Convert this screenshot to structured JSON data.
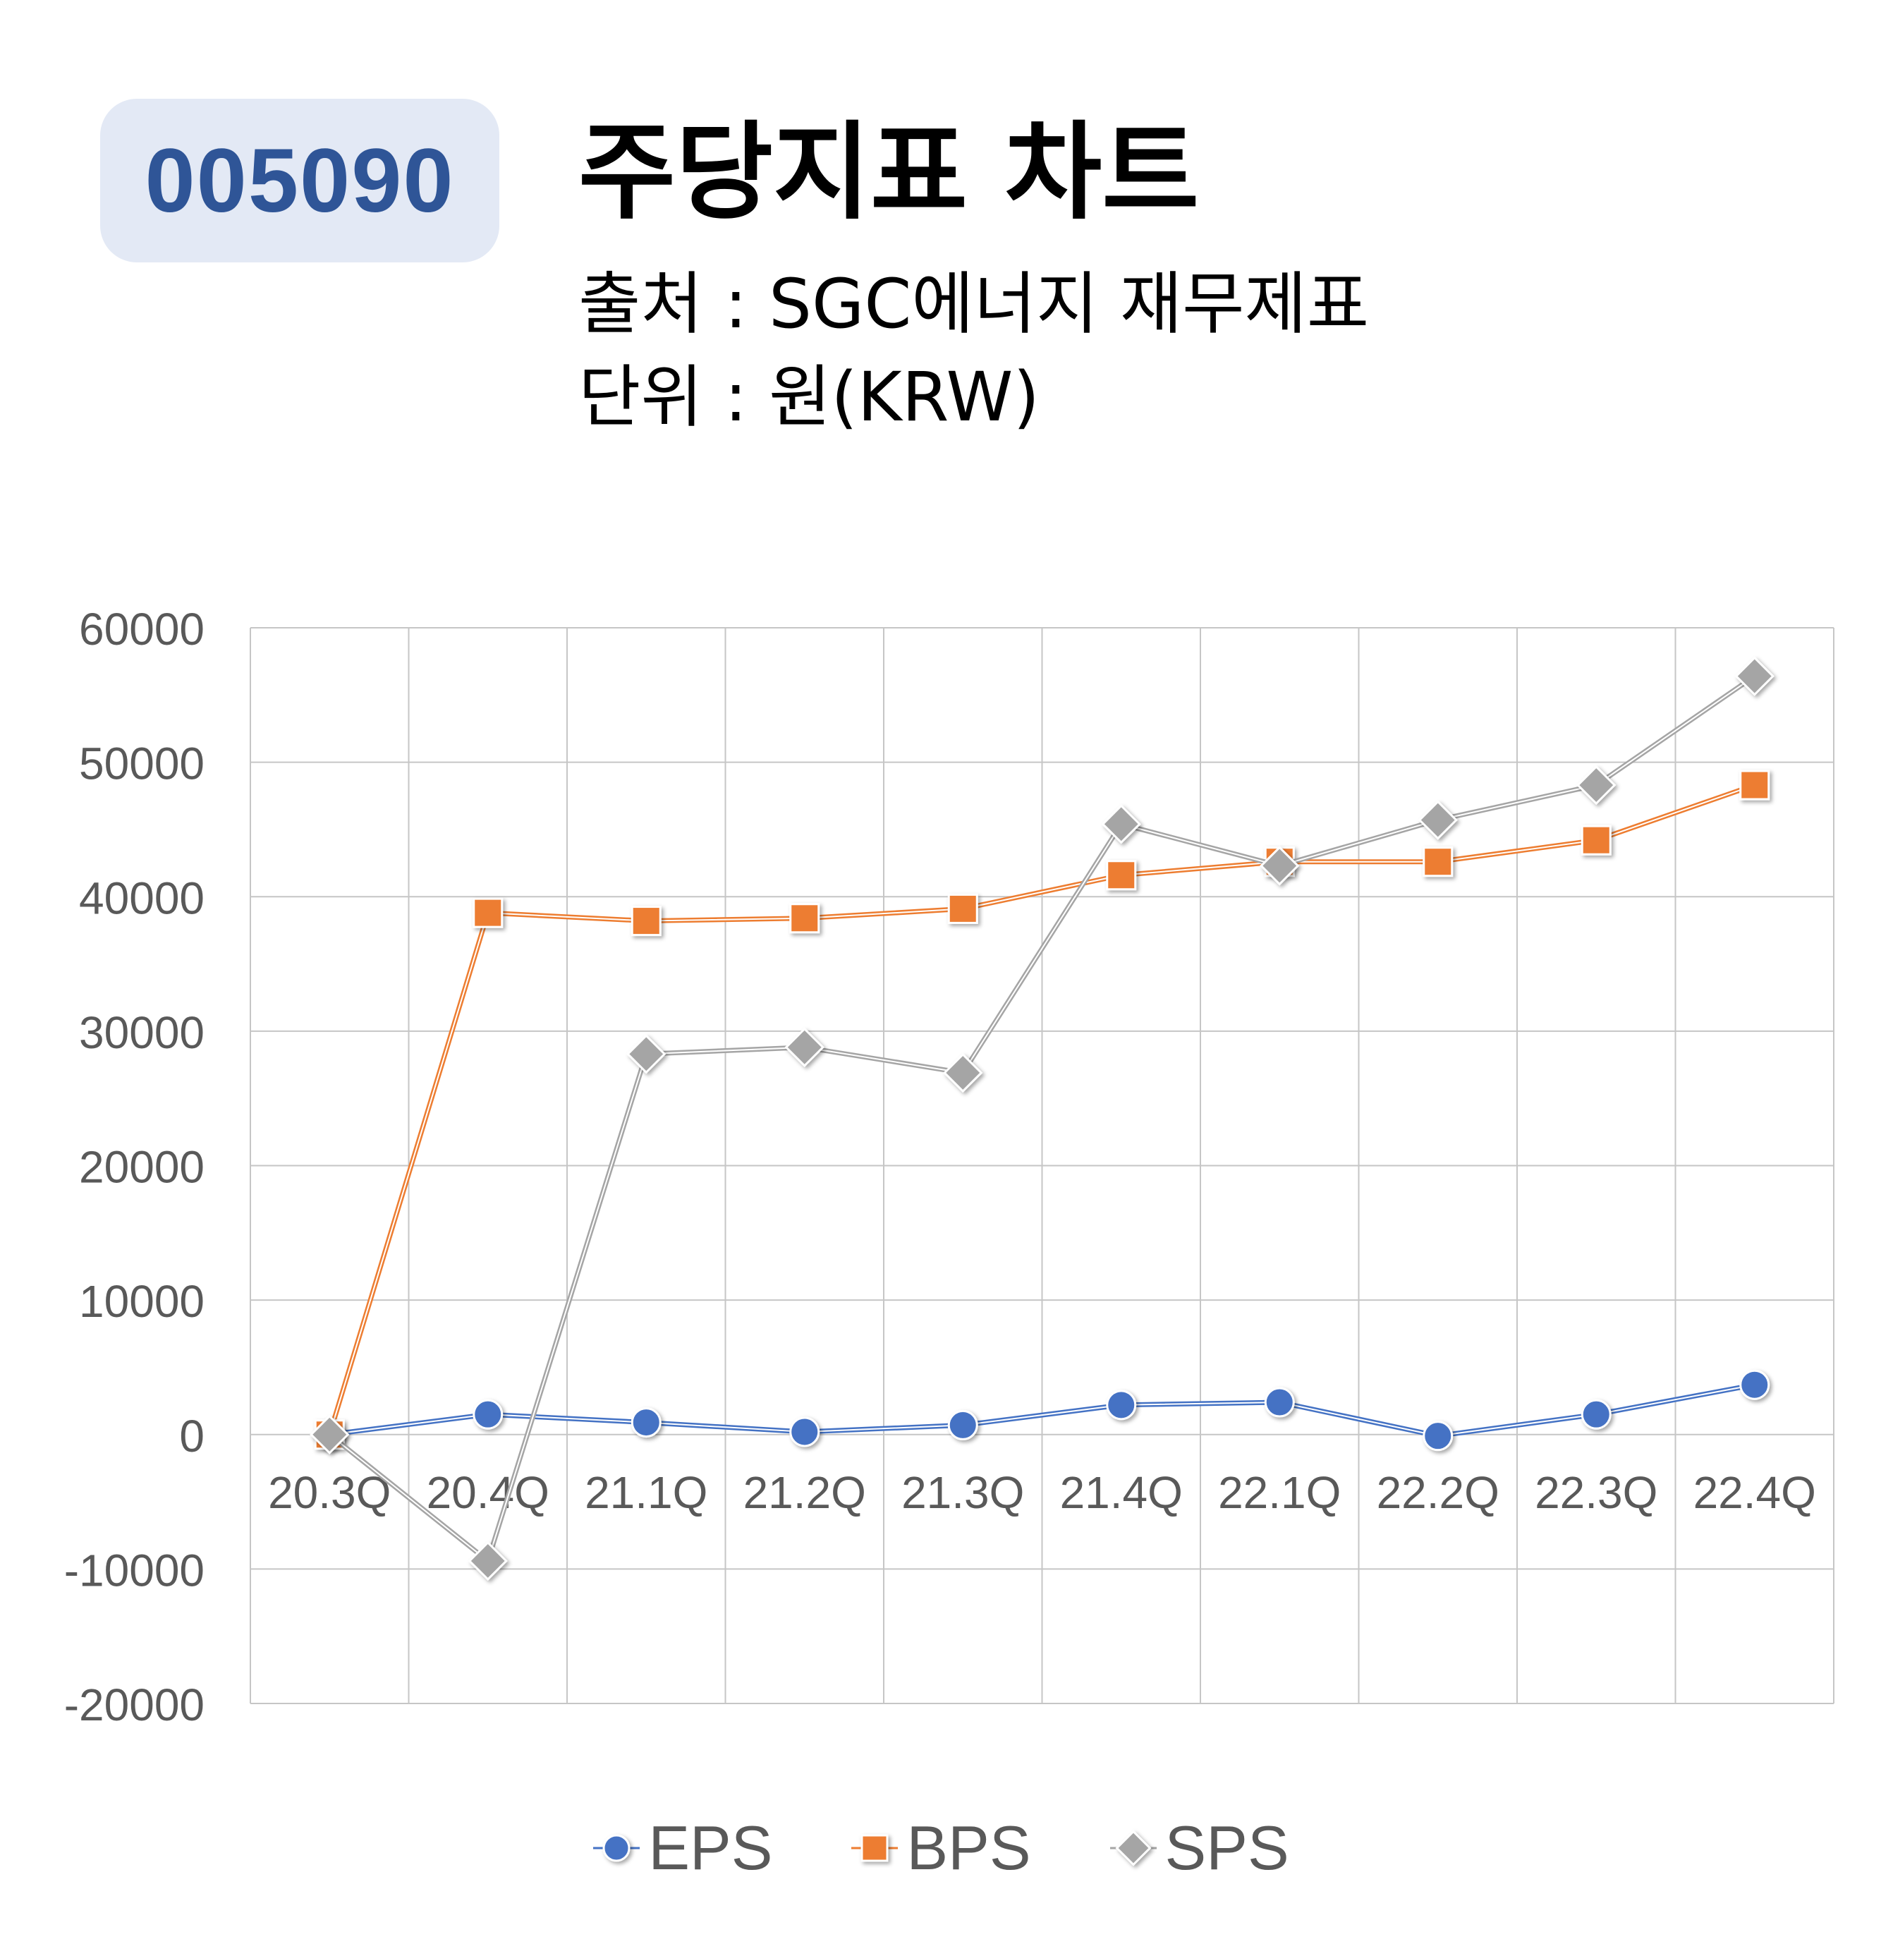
{
  "badge": {
    "code": "005090"
  },
  "header": {
    "title": "주당지표 차트",
    "source": "출처 : SGC에너지 재무제표",
    "unit": "단위 : 원(KRW)"
  },
  "colors": {
    "EPS": "#4472c4",
    "BPS": "#ed7d31",
    "SPS": "#a5a5a5",
    "grid": "#c6c6c6",
    "badge_bg": "#e3e9f5",
    "badge_text": "#2f5597"
  },
  "chart_data": {
    "type": "line",
    "categories": [
      "20.3Q",
      "20.4Q",
      "21.1Q",
      "21.2Q",
      "21.3Q",
      "21.4Q",
      "22.1Q",
      "22.2Q",
      "22.3Q",
      "22.4Q"
    ],
    "ylim": [
      -20000,
      60000
    ],
    "yticks": [
      60000,
      50000,
      40000,
      30000,
      20000,
      10000,
      0,
      -10000,
      -20000
    ],
    "grid": true,
    "legend_position": "bottom",
    "series": [
      {
        "name": "EPS",
        "marker": "circle",
        "values": [
          0,
          1500,
          900,
          200,
          700,
          2200,
          2400,
          -100,
          1500,
          3700
        ]
      },
      {
        "name": "BPS",
        "marker": "square",
        "values": [
          0,
          38800,
          38200,
          38400,
          39100,
          41600,
          42600,
          42600,
          44200,
          48300
        ]
      },
      {
        "name": "SPS",
        "marker": "diamond",
        "values": [
          0,
          -9400,
          28300,
          28800,
          26900,
          45400,
          42300,
          45700,
          48300,
          56400
        ]
      }
    ]
  }
}
